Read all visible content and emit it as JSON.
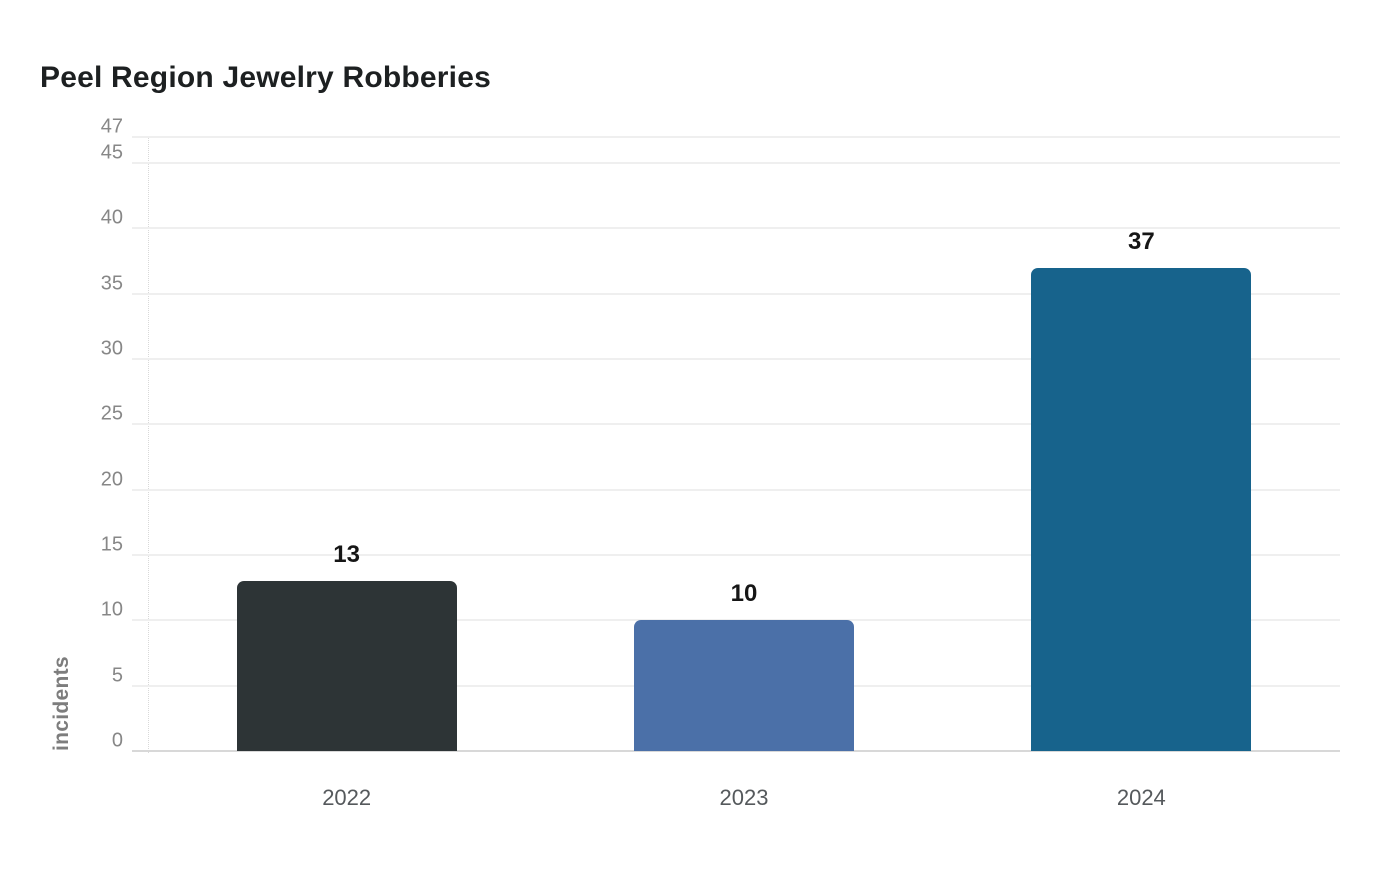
{
  "title": "Peel Region Jewelry Robberies",
  "chart_data": {
    "type": "bar",
    "title": "Peel Region Jewelry Robberies",
    "categories": [
      "2022",
      "2023",
      "2024"
    ],
    "values": [
      13,
      10,
      37
    ],
    "value_labels": [
      "13",
      "10",
      "37"
    ],
    "bar_colors": [
      "#2d3436",
      "#4b70a8",
      "#17638c"
    ],
    "xlabel": "",
    "ylabel": "incidents",
    "yticks": [
      0,
      5,
      10,
      15,
      20,
      25,
      30,
      35,
      40,
      45,
      47
    ],
    "ylim": [
      0,
      47
    ],
    "grid": true,
    "legend": false,
    "background_color": "#ffffff",
    "gridline_color": "#efefef",
    "baseline_color": "#d8d8d8",
    "title_color": "#1d2021",
    "ytick_color": "#878787",
    "xtick_color": "#55595c",
    "value_label_color": "#161616",
    "ylabel_color": "#7d7d7d"
  }
}
